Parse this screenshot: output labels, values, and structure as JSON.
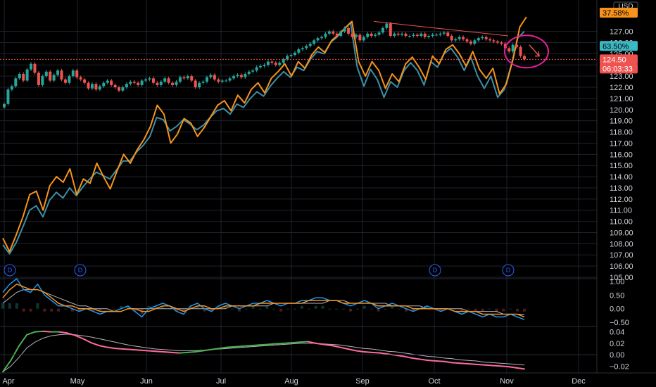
{
  "currency": "USD",
  "colors": {
    "background": "#000000",
    "grid": "#1e222d",
    "up": "#26a69a",
    "down": "#ef5350",
    "orange": "#f7931a",
    "teal": "#3d8ea6",
    "magenta": "#e91e9a",
    "accent_blue": "#2962ff",
    "osc_green": "#4caf50",
    "osc_pink": "#ff6b9d",
    "signal_gray": "#b2b5be"
  },
  "tags": {
    "orange_pct": "37.58%",
    "teal_pct": "63.50%",
    "price": "124.50",
    "countdown": "06:03:33"
  },
  "dividend_label": "D",
  "chart_data": {
    "type": "line",
    "x_months": [
      "Apr",
      "May",
      "Jun",
      "Jul",
      "Aug",
      "Sep",
      "Oct",
      "Nov",
      "Dec"
    ],
    "main": {
      "y_ticks": [
        "127.00",
        "126.00",
        "125.00",
        "124.00",
        "123.00",
        "122.00",
        "121.00",
        "120.00",
        "119.00",
        "118.00",
        "117.00",
        "116.00",
        "115.00",
        "114.00",
        "113.00",
        "112.00",
        "111.00",
        "110.00",
        "109.00",
        "108.00",
        "107.00",
        "106.00",
        "105.00"
      ],
      "ylim": [
        105,
        128.3
      ],
      "candles_close": [
        120.5,
        121.8,
        122.1,
        122.8,
        123.2,
        122.6,
        123.6,
        124.1,
        123.3,
        122.2,
        123.0,
        123.4,
        122.6,
        123.1,
        123.5,
        122.7,
        122.4,
        123.0,
        123.5,
        122.9,
        122.7,
        122.4,
        121.9,
        122.3,
        121.8,
        122.1,
        122.4,
        122.6,
        122.2,
        122.0,
        121.7,
        122.0,
        122.3,
        122.5,
        122.4,
        122.2,
        122.6,
        122.7,
        122.8,
        122.4,
        122.2,
        122.5,
        122.8,
        122.4,
        122.2,
        122.5,
        122.9,
        122.8,
        123.0,
        122.6,
        122.0,
        122.4,
        122.5,
        122.9,
        123.1,
        122.7,
        122.5,
        122.6,
        122.6,
        122.8,
        123.0,
        123.1,
        122.9,
        123.2,
        123.4,
        123.5,
        123.8,
        123.9,
        124.0,
        124.3,
        124.2,
        124.0,
        124.2,
        124.5,
        124.8,
        124.9,
        125.1,
        125.4,
        125.5,
        125.7,
        125.9,
        126.2,
        126.4,
        126.5,
        126.8,
        127.0,
        126.8,
        126.6,
        127.0,
        127.3,
        126.8,
        126.5,
        126.7,
        126.2,
        126.5,
        126.8,
        126.6,
        126.7,
        126.9,
        127.3,
        127.7,
        126.6,
        126.8,
        126.7,
        126.8,
        126.6,
        126.6,
        126.7,
        126.6,
        126.8,
        126.5,
        126.6,
        126.7,
        126.7,
        126.8,
        126.9,
        126.6,
        126.2,
        126.3,
        126.5,
        126.3,
        126.1,
        125.9,
        126.2,
        126.4,
        126.5,
        126.3,
        126.2,
        126.1,
        126.0,
        125.9,
        125.5,
        125.2,
        125.8,
        125.6,
        124.8,
        124.5
      ],
      "orange": [
        108.5,
        107.3,
        108.8,
        110.4,
        112.4,
        112.7,
        111.0,
        113.2,
        114.0,
        113.5,
        114.7,
        112.4,
        113.8,
        113.4,
        115.2,
        114.0,
        112.9,
        114.5,
        116.0,
        115.2,
        116.4,
        117.3,
        118.5,
        120.4,
        119.6,
        117.0,
        117.8,
        119.2,
        118.8,
        117.6,
        118.4,
        119.4,
        120.4,
        120.8,
        119.9,
        121.3,
        120.6,
        121.8,
        122.4,
        121.5,
        122.8,
        123.4,
        124.1,
        123.0,
        124.3,
        123.7,
        124.9,
        125.6,
        125.1,
        126.2,
        126.7,
        127.3,
        127.9,
        124.3,
        123.0,
        124.3,
        123.5,
        121.9,
        123.2,
        122.5,
        124.1,
        124.7,
        123.8,
        122.7,
        124.8,
        124.1,
        125.4,
        125.8,
        125.0,
        123.9,
        125.2,
        123.6,
        122.8,
        123.7,
        121.4,
        122.3,
        124.5,
        127.4,
        128.3
      ],
      "teal": [
        107.9,
        107.1,
        108.1,
        109.5,
        111.0,
        111.4,
        110.4,
        111.9,
        112.6,
        112.1,
        113.0,
        112.3,
        113.1,
        113.8,
        114.4,
        114.1,
        113.8,
        114.6,
        115.4,
        115.4,
        116.2,
        116.8,
        117.6,
        119.3,
        119.1,
        118.1,
        118.5,
        119.1,
        118.7,
        118.2,
        118.6,
        119.3,
        119.9,
        120.1,
        119.6,
        120.5,
        120.2,
        121.0,
        121.6,
        121.2,
        122.1,
        122.8,
        123.4,
        122.9,
        123.8,
        123.5,
        124.5,
        125.2,
        125.0,
        126.0,
        126.5,
        127.2,
        127.8,
        123.8,
        122.1,
        123.6,
        122.7,
        121.1,
        122.5,
        122.0,
        123.5,
        124.2,
        123.5,
        122.2,
        124.3,
        123.8,
        125.0,
        125.5,
        124.7,
        123.5,
        124.7,
        123.0,
        121.9,
        123.0,
        121.1,
        121.8,
        123.9,
        126.4,
        127.0
      ]
    },
    "macd": {
      "y_ticks": [
        "1.00",
        "0.50",
        "0.00",
        "−0.50"
      ],
      "ylim": [
        -0.6,
        1.05
      ],
      "blue": [
        0.6,
        0.9,
        1.1,
        0.7,
        0.6,
        0.9,
        0.5,
        0.3,
        0.1,
        0.1,
        0.0,
        -0.1,
        0.0,
        -0.1,
        -0.2,
        -0.1,
        -0.1,
        0.0,
        0.1,
        -0.1,
        -0.3,
        0.0,
        0.1,
        0.2,
        0.1,
        -0.1,
        -0.2,
        0.1,
        0.2,
        0.0,
        -0.1,
        0.1,
        0.2,
        0.1,
        0.0,
        0.1,
        0.2,
        0.2,
        0.3,
        0.2,
        0.1,
        0.2,
        0.2,
        0.3,
        0.3,
        0.4,
        0.4,
        0.3,
        0.3,
        0.2,
        0.1,
        0.2,
        0.3,
        0.2,
        0.0,
        0.1,
        0.2,
        0.1,
        0.0,
        -0.1,
        0.0,
        0.1,
        0.0,
        -0.1,
        0.0,
        -0.1,
        -0.2,
        -0.1,
        -0.2,
        -0.3,
        -0.2,
        -0.3,
        -0.3,
        -0.2,
        -0.3,
        -0.4
      ],
      "orange": [
        0.4,
        0.7,
        0.9,
        0.8,
        0.7,
        0.7,
        0.6,
        0.4,
        0.2,
        0.1,
        0.1,
        0.0,
        0.0,
        0.0,
        -0.1,
        -0.1,
        -0.1,
        -0.1,
        0.0,
        0.0,
        -0.1,
        -0.1,
        0.0,
        0.1,
        0.1,
        0.0,
        -0.1,
        0.0,
        0.1,
        0.1,
        0.0,
        0.0,
        0.1,
        0.1,
        0.1,
        0.1,
        0.1,
        0.2,
        0.2,
        0.2,
        0.2,
        0.2,
        0.2,
        0.2,
        0.3,
        0.3,
        0.3,
        0.3,
        0.3,
        0.2,
        0.2,
        0.2,
        0.2,
        0.2,
        0.1,
        0.1,
        0.1,
        0.1,
        0.1,
        0.0,
        0.0,
        0.0,
        0.0,
        0.0,
        0.0,
        -0.1,
        -0.1,
        -0.1,
        -0.1,
        -0.2,
        -0.2,
        -0.2,
        -0.2,
        -0.2,
        -0.2,
        -0.3
      ],
      "signal": [
        0.2,
        0.4,
        0.6,
        0.7,
        0.7,
        0.7,
        0.6,
        0.5,
        0.4,
        0.3,
        0.2,
        0.1,
        0.1,
        0.0,
        0.0,
        0.0,
        -0.1,
        -0.1,
        0.0,
        0.0,
        0.0,
        0.0,
        0.0,
        0.0,
        0.0,
        0.0,
        0.0,
        0.0,
        0.0,
        0.0,
        0.0,
        0.0,
        0.0,
        0.1,
        0.1,
        0.1,
        0.1,
        0.1,
        0.1,
        0.2,
        0.2,
        0.2,
        0.2,
        0.2,
        0.2,
        0.2,
        0.2,
        0.3,
        0.3,
        0.3,
        0.2,
        0.2,
        0.2,
        0.2,
        0.2,
        0.2,
        0.1,
        0.1,
        0.1,
        0.1,
        0.1,
        0.0,
        0.0,
        0.0,
        0.0,
        0.0,
        0.0,
        -0.1,
        -0.1,
        -0.1,
        -0.1,
        -0.1,
        -0.2,
        -0.2,
        -0.2,
        -0.2
      ]
    },
    "osc": {
      "y_ticks": [
        "0.04",
        "0.02",
        "0.00",
        "−0.02"
      ],
      "ylim": [
        -0.032,
        0.047
      ],
      "main": [
        -0.03,
        -0.01,
        0.015,
        0.035,
        0.04,
        0.041,
        0.04,
        0.04,
        0.038,
        0.034,
        0.028,
        0.021,
        0.016,
        0.013,
        0.011,
        0.01,
        0.009,
        0.008,
        0.007,
        0.006,
        0.005,
        0.004,
        0.003,
        0.004,
        0.005,
        0.007,
        0.009,
        0.011,
        0.013,
        0.014,
        0.015,
        0.016,
        0.017,
        0.018,
        0.019,
        0.02,
        0.021,
        0.022,
        0.023,
        0.02,
        0.018,
        0.016,
        0.013,
        0.01,
        0.007,
        0.005,
        0.004,
        0.003,
        0.001,
        -0.001,
        -0.003,
        -0.006,
        -0.008,
        -0.01,
        -0.011,
        -0.012,
        -0.014,
        -0.015,
        -0.016,
        -0.017,
        -0.018,
        -0.019,
        -0.02,
        -0.021,
        -0.023,
        -0.025
      ],
      "signal": [
        -0.03,
        -0.02,
        -0.005,
        0.012,
        0.022,
        0.029,
        0.033,
        0.035,
        0.036,
        0.035,
        0.033,
        0.031,
        0.028,
        0.025,
        0.022,
        0.019,
        0.016,
        0.014,
        0.012,
        0.01,
        0.009,
        0.008,
        0.007,
        0.007,
        0.007,
        0.008,
        0.009,
        0.01,
        0.011,
        0.012,
        0.013,
        0.014,
        0.015,
        0.016,
        0.017,
        0.018,
        0.019,
        0.02,
        0.02,
        0.02,
        0.019,
        0.018,
        0.017,
        0.015,
        0.013,
        0.011,
        0.01,
        0.008,
        0.006,
        0.005,
        0.003,
        0.001,
        -0.001,
        -0.003,
        -0.004,
        -0.006,
        -0.007,
        -0.009,
        -0.01,
        -0.011,
        -0.013,
        -0.014,
        -0.015,
        -0.016,
        -0.017,
        -0.018
      ]
    }
  }
}
